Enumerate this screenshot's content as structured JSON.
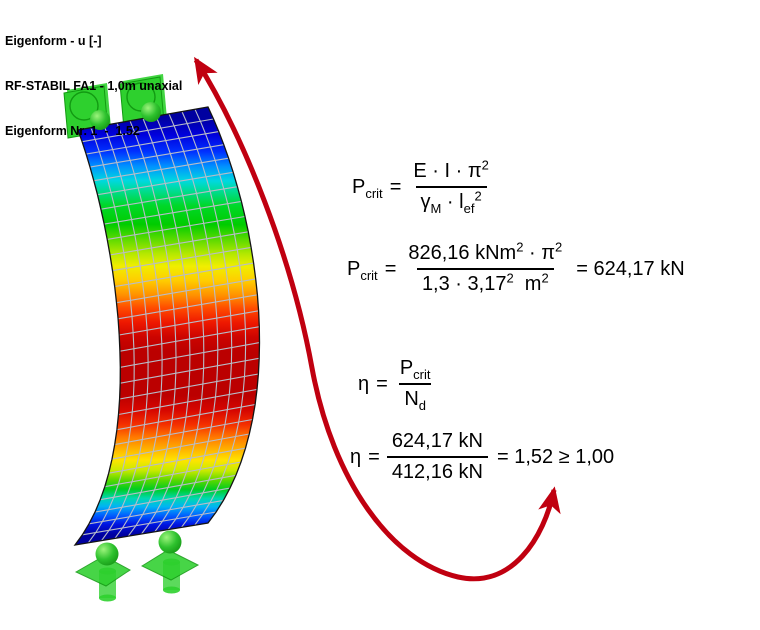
{
  "header": {
    "line1": "Eigenform - u [-]",
    "line2": "RF-STABIL FA1 - 1,0m unaxial",
    "line3": "Eigenform Nr. 1  -  1.52"
  },
  "formulas": {
    "f1": {
      "lhs": "P",
      "lhs_sub": "crit",
      "eq": "=",
      "num": "E · I · π",
      "num_sup": "2",
      "den_a": "γ",
      "den_a_sub": "M",
      "den_dot": " · ",
      "den_b": "l",
      "den_b_sub": "ef",
      "den_sup": "2"
    },
    "f2": {
      "lhs": "P",
      "lhs_sub": "crit",
      "eq": "=",
      "num_a": "826,16 kNm",
      "num_a_sup": "2",
      "num_b": " · π",
      "num_b_sup": "2",
      "den_a": "1,3 · 3,17",
      "den_a_sup": "2",
      "den_b": "  m",
      "den_b_sup": "2",
      "result": "= 624,17 kN"
    },
    "f3": {
      "lhs": "η",
      "eq": "=",
      "num": "P",
      "num_sub": "crit",
      "den": "N",
      "den_sub": "d"
    },
    "f4": {
      "lhs": "η",
      "eq": "=",
      "num": "624,17 kN",
      "den": "412,16 kN",
      "result": "= 1,52 ≥ 1,00"
    }
  },
  "figure": {
    "arrow_color": "#c00010",
    "support_green": "#2ed02e",
    "support_green_dark": "#129a12",
    "grid_color": "#b8bcc8",
    "outline_color": "#141414",
    "gradient_stops": [
      [
        "0.00",
        "#0000a0"
      ],
      [
        "0.04",
        "#0000dc"
      ],
      [
        "0.08",
        "#0030ff"
      ],
      [
        "0.115",
        "#0090ff"
      ],
      [
        "0.15",
        "#00d8e0"
      ],
      [
        "0.175",
        "#00dc90"
      ],
      [
        "0.21",
        "#00d828"
      ],
      [
        "0.255",
        "#00cc00"
      ],
      [
        "0.295",
        "#66dc00"
      ],
      [
        "0.325",
        "#b4e800"
      ],
      [
        "0.355",
        "#f0ee00"
      ],
      [
        "0.39",
        "#ffcc00"
      ],
      [
        "0.425",
        "#ff9000"
      ],
      [
        "0.455",
        "#ff4c00"
      ],
      [
        "0.49",
        "#ee1800"
      ],
      [
        "0.525",
        "#cc0400"
      ],
      [
        "0.56",
        "#bb0000"
      ],
      [
        "0.665",
        "#bb0000"
      ],
      [
        "0.70",
        "#d60600"
      ],
      [
        "0.735",
        "#f43000"
      ],
      [
        "0.765",
        "#ff7800"
      ],
      [
        "0.795",
        "#ffb400"
      ],
      [
        "0.82",
        "#ffe400"
      ],
      [
        "0.845",
        "#c8ea00"
      ],
      [
        "0.868",
        "#5cd800"
      ],
      [
        "0.89",
        "#00cc20"
      ],
      [
        "0.912",
        "#00d8b0"
      ],
      [
        "0.932",
        "#00b4f4"
      ],
      [
        "0.955",
        "#0058ff"
      ],
      [
        "0.975",
        "#0014e0"
      ],
      [
        "1.00",
        "#0000a0"
      ]
    ]
  }
}
